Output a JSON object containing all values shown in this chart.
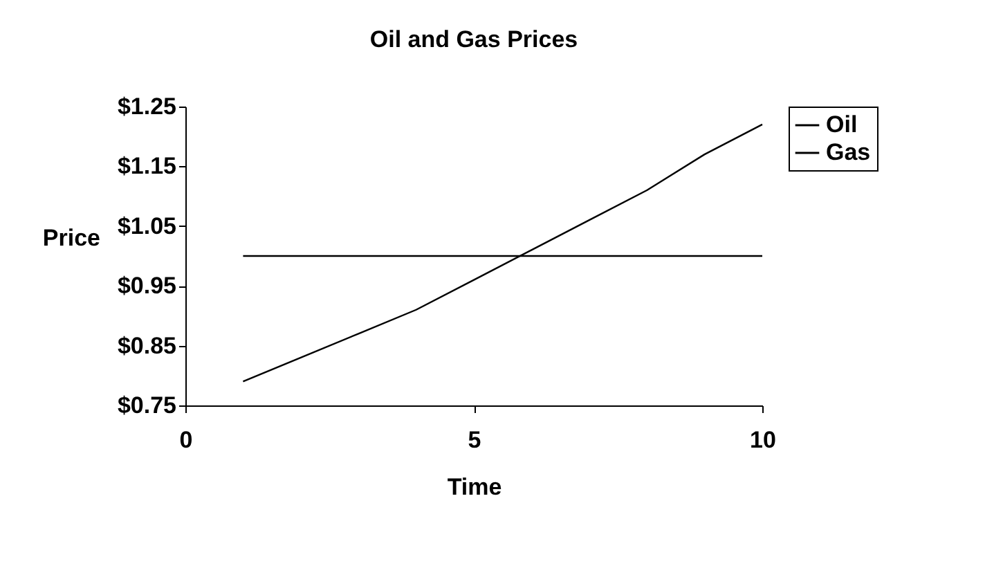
{
  "chart_data": {
    "type": "line",
    "title": "Oil and Gas Prices",
    "xlabel": "Time",
    "ylabel": "Price",
    "x": [
      1,
      2,
      3,
      4,
      5,
      6,
      7,
      8,
      9,
      10
    ],
    "series": [
      {
        "name": "Oil",
        "color": "#000000",
        "values": [
          0.79,
          0.83,
          0.87,
          0.91,
          0.96,
          1.01,
          1.06,
          1.11,
          1.17,
          1.22
        ]
      },
      {
        "name": "Gas",
        "color": "#000000",
        "values": [
          1.0,
          1.0,
          1.0,
          1.0,
          1.0,
          1.0,
          1.0,
          1.0,
          1.0,
          1.0
        ]
      }
    ],
    "xlim": [
      0,
      10
    ],
    "xticks": [
      0,
      5,
      10
    ],
    "ylim": [
      0.75,
      1.25
    ],
    "yticks": [
      {
        "value": 0.75,
        "label": "$0.75"
      },
      {
        "value": 0.85,
        "label": "$0.85"
      },
      {
        "value": 0.95,
        "label": "$0.95"
      },
      {
        "value": 1.05,
        "label": "$1.05"
      },
      {
        "value": 1.15,
        "label": "$1.15"
      },
      {
        "value": 1.25,
        "label": "$1.25"
      }
    ],
    "grid": false,
    "legend": "right",
    "marker": "none",
    "line_style": "solid"
  }
}
